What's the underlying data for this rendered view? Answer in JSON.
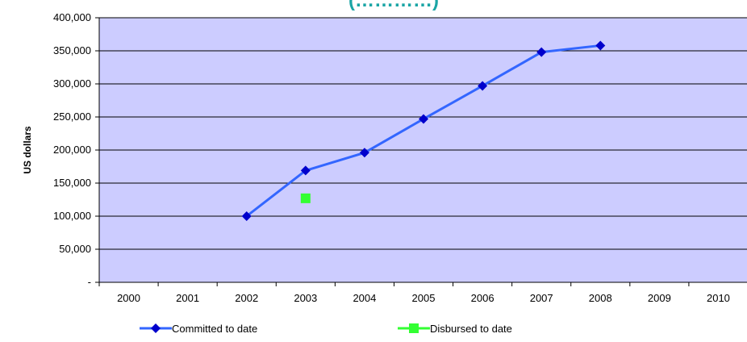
{
  "chart_data": {
    "type": "line",
    "title": "(…………)",
    "xlabel": "",
    "ylabel": "US dollars",
    "categories": [
      "2000",
      "2001",
      "2002",
      "2003",
      "2004",
      "2005",
      "2006",
      "2007",
      "2008",
      "2009",
      "2010"
    ],
    "ylim": [
      0,
      400000
    ],
    "y_ticks": [
      "-",
      "50,000",
      "100,000",
      "150,000",
      "200,000",
      "250,000",
      "300,000",
      "350,000",
      "400,000"
    ],
    "grid": true,
    "legend_position": "bottom",
    "series": [
      {
        "name": "Committed to date",
        "color": "#3366ff",
        "marker": "diamond",
        "marker_color": "#0000cc",
        "values": [
          null,
          null,
          100000,
          169000,
          196000,
          247000,
          297000,
          348000,
          358000,
          null,
          null
        ]
      },
      {
        "name": "Disbursed to date",
        "color": "#33ff33",
        "marker": "square",
        "marker_color": "#33ff33",
        "values": [
          null,
          null,
          null,
          127000,
          null,
          null,
          null,
          null,
          null,
          null,
          null
        ]
      }
    ],
    "plot_background": "#ccccff"
  }
}
